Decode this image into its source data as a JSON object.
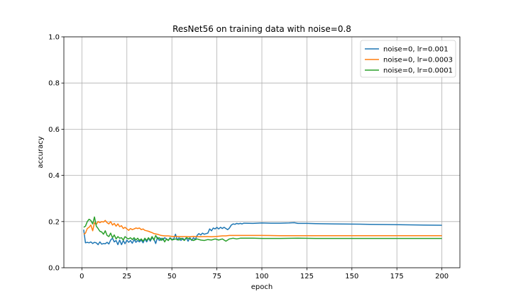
{
  "chart_data": {
    "type": "line",
    "title": "ResNet56 on training data with noise=0.8",
    "xlabel": "epoch",
    "ylabel": "accuracy",
    "xlim": [
      -10,
      210
    ],
    "ylim": [
      0.0,
      1.0
    ],
    "xticks": [
      0,
      25,
      50,
      75,
      100,
      125,
      150,
      175,
      200
    ],
    "yticks": [
      0.0,
      0.2,
      0.4,
      0.6,
      0.8,
      1.0
    ],
    "grid": true,
    "legend_position": "top-right",
    "series": [
      {
        "name": "noise=0, lr=0.001",
        "color": "#1f77b4",
        "points": [
          [
            1,
            0.165
          ],
          [
            2,
            0.108
          ],
          [
            3,
            0.11
          ],
          [
            4,
            0.108
          ],
          [
            5,
            0.112
          ],
          [
            6,
            0.105
          ],
          [
            7,
            0.11
          ],
          [
            8,
            0.108
          ],
          [
            9,
            0.1
          ],
          [
            10,
            0.112
          ],
          [
            11,
            0.102
          ],
          [
            12,
            0.105
          ],
          [
            13,
            0.104
          ],
          [
            14,
            0.11
          ],
          [
            15,
            0.103
          ],
          [
            16,
            0.12
          ],
          [
            17,
            0.128
          ],
          [
            18,
            0.112
          ],
          [
            19,
            0.118
          ],
          [
            20,
            0.1
          ],
          [
            21,
            0.12
          ],
          [
            22,
            0.1
          ],
          [
            23,
            0.118
          ],
          [
            24,
            0.104
          ],
          [
            25,
            0.12
          ],
          [
            26,
            0.11
          ],
          [
            27,
            0.118
          ],
          [
            28,
            0.106
          ],
          [
            29,
            0.122
          ],
          [
            30,
            0.11
          ],
          [
            31,
            0.118
          ],
          [
            32,
            0.112
          ],
          [
            33,
            0.12
          ],
          [
            34,
            0.108
          ],
          [
            35,
            0.125
          ],
          [
            36,
            0.112
          ],
          [
            37,
            0.128
          ],
          [
            38,
            0.115
          ],
          [
            39,
            0.13
          ],
          [
            40,
            0.125
          ],
          [
            41,
            0.105
          ],
          [
            42,
            0.132
          ],
          [
            43,
            0.118
          ],
          [
            44,
            0.128
          ],
          [
            45,
            0.12
          ],
          [
            46,
            0.13
          ],
          [
            47,
            0.125
          ],
          [
            48,
            0.118
          ],
          [
            49,
            0.13
          ],
          [
            50,
            0.122
          ],
          [
            51,
            0.125
          ],
          [
            52,
            0.145
          ],
          [
            53,
            0.12
          ],
          [
            54,
            0.13
          ],
          [
            55,
            0.118
          ],
          [
            56,
            0.128
          ],
          [
            57,
            0.12
          ],
          [
            58,
            0.13
          ],
          [
            59,
            0.115
          ],
          [
            60,
            0.13
          ],
          [
            61,
            0.118
          ],
          [
            62,
            0.13
          ],
          [
            63,
            0.122
          ],
          [
            64,
            0.14
          ],
          [
            65,
            0.148
          ],
          [
            66,
            0.142
          ],
          [
            67,
            0.15
          ],
          [
            68,
            0.145
          ],
          [
            69,
            0.148
          ],
          [
            70,
            0.15
          ],
          [
            71,
            0.168
          ],
          [
            72,
            0.16
          ],
          [
            73,
            0.172
          ],
          [
            74,
            0.168
          ],
          [
            75,
            0.175
          ],
          [
            76,
            0.168
          ],
          [
            77,
            0.175
          ],
          [
            78,
            0.17
          ],
          [
            79,
            0.175
          ],
          [
            80,
            0.17
          ],
          [
            81,
            0.165
          ],
          [
            82,
            0.172
          ],
          [
            83,
            0.185
          ],
          [
            84,
            0.19
          ],
          [
            85,
            0.188
          ],
          [
            86,
            0.192
          ],
          [
            87,
            0.19
          ],
          [
            88,
            0.192
          ],
          [
            89,
            0.19
          ],
          [
            90,
            0.193
          ],
          [
            95,
            0.192
          ],
          [
            100,
            0.194
          ],
          [
            105,
            0.193
          ],
          [
            110,
            0.193
          ],
          [
            115,
            0.194
          ],
          [
            118,
            0.195
          ],
          [
            120,
            0.192
          ],
          [
            125,
            0.192
          ],
          [
            130,
            0.191
          ],
          [
            140,
            0.19
          ],
          [
            150,
            0.189
          ],
          [
            160,
            0.188
          ],
          [
            170,
            0.187
          ],
          [
            180,
            0.186
          ],
          [
            190,
            0.185
          ],
          [
            200,
            0.184
          ]
        ]
      },
      {
        "name": "noise=0, lr=0.0003",
        "color": "#ff7f0e",
        "points": [
          [
            1,
            0.145
          ],
          [
            2,
            0.15
          ],
          [
            3,
            0.17
          ],
          [
            4,
            0.175
          ],
          [
            5,
            0.185
          ],
          [
            6,
            0.16
          ],
          [
            7,
            0.195
          ],
          [
            8,
            0.188
          ],
          [
            9,
            0.2
          ],
          [
            10,
            0.195
          ],
          [
            11,
            0.2
          ],
          [
            12,
            0.198
          ],
          [
            13,
            0.205
          ],
          [
            14,
            0.195
          ],
          [
            15,
            0.19
          ],
          [
            16,
            0.2
          ],
          [
            17,
            0.185
          ],
          [
            18,
            0.192
          ],
          [
            19,
            0.18
          ],
          [
            20,
            0.19
          ],
          [
            21,
            0.178
          ],
          [
            22,
            0.182
          ],
          [
            23,
            0.17
          ],
          [
            24,
            0.175
          ],
          [
            25,
            0.168
          ],
          [
            26,
            0.162
          ],
          [
            27,
            0.17
          ],
          [
            28,
            0.165
          ],
          [
            29,
            0.168
          ],
          [
            30,
            0.172
          ],
          [
            31,
            0.17
          ],
          [
            32,
            0.172
          ],
          [
            33,
            0.165
          ],
          [
            34,
            0.168
          ],
          [
            35,
            0.162
          ],
          [
            36,
            0.16
          ],
          [
            37,
            0.158
          ],
          [
            38,
            0.155
          ],
          [
            39,
            0.152
          ],
          [
            40,
            0.148
          ],
          [
            42,
            0.145
          ],
          [
            44,
            0.14
          ],
          [
            46,
            0.138
          ],
          [
            48,
            0.138
          ],
          [
            50,
            0.136
          ],
          [
            52,
            0.136
          ],
          [
            55,
            0.135
          ],
          [
            58,
            0.135
          ],
          [
            60,
            0.134
          ],
          [
            62,
            0.136
          ],
          [
            65,
            0.134
          ],
          [
            68,
            0.135
          ],
          [
            70,
            0.135
          ],
          [
            72,
            0.134
          ],
          [
            75,
            0.136
          ],
          [
            78,
            0.138
          ],
          [
            80,
            0.138
          ],
          [
            82,
            0.14
          ],
          [
            85,
            0.14
          ],
          [
            90,
            0.14
          ],
          [
            100,
            0.14
          ],
          [
            110,
            0.139
          ],
          [
            120,
            0.139
          ],
          [
            130,
            0.139
          ],
          [
            140,
            0.139
          ],
          [
            150,
            0.139
          ],
          [
            160,
            0.139
          ],
          [
            170,
            0.139
          ],
          [
            180,
            0.139
          ],
          [
            190,
            0.139
          ],
          [
            200,
            0.139
          ]
        ]
      },
      {
        "name": "noise=0, lr=0.0001",
        "color": "#2ca02c",
        "points": [
          [
            1,
            0.175
          ],
          [
            2,
            0.18
          ],
          [
            3,
            0.2
          ],
          [
            4,
            0.21
          ],
          [
            5,
            0.205
          ],
          [
            6,
            0.19
          ],
          [
            7,
            0.22
          ],
          [
            8,
            0.18
          ],
          [
            9,
            0.17
          ],
          [
            10,
            0.158
          ],
          [
            11,
            0.155
          ],
          [
            12,
            0.145
          ],
          [
            13,
            0.16
          ],
          [
            14,
            0.14
          ],
          [
            15,
            0.135
          ],
          [
            16,
            0.15
          ],
          [
            17,
            0.13
          ],
          [
            18,
            0.142
          ],
          [
            19,
            0.125
          ],
          [
            20,
            0.135
          ],
          [
            21,
            0.128
          ],
          [
            22,
            0.13
          ],
          [
            23,
            0.12
          ],
          [
            24,
            0.135
          ],
          [
            25,
            0.128
          ],
          [
            26,
            0.125
          ],
          [
            27,
            0.13
          ],
          [
            28,
            0.122
          ],
          [
            29,
            0.13
          ],
          [
            30,
            0.12
          ],
          [
            31,
            0.128
          ],
          [
            32,
            0.118
          ],
          [
            33,
            0.125
          ],
          [
            34,
            0.115
          ],
          [
            35,
            0.128
          ],
          [
            36,
            0.118
          ],
          [
            37,
            0.13
          ],
          [
            38,
            0.12
          ],
          [
            39,
            0.135
          ],
          [
            40,
            0.12
          ],
          [
            41,
            0.14
          ],
          [
            42,
            0.125
          ],
          [
            43,
            0.13
          ],
          [
            44,
            0.118
          ],
          [
            45,
            0.128
          ],
          [
            46,
            0.112
          ],
          [
            47,
            0.125
          ],
          [
            48,
            0.118
          ],
          [
            49,
            0.128
          ],
          [
            50,
            0.12
          ],
          [
            52,
            0.125
          ],
          [
            54,
            0.12
          ],
          [
            55,
            0.128
          ],
          [
            57,
            0.118
          ],
          [
            58,
            0.13
          ],
          [
            60,
            0.125
          ],
          [
            62,
            0.118
          ],
          [
            64,
            0.125
          ],
          [
            66,
            0.12
          ],
          [
            68,
            0.118
          ],
          [
            70,
            0.122
          ],
          [
            72,
            0.12
          ],
          [
            74,
            0.125
          ],
          [
            76,
            0.12
          ],
          [
            78,
            0.125
          ],
          [
            80,
            0.115
          ],
          [
            82,
            0.125
          ],
          [
            84,
            0.128
          ],
          [
            86,
            0.125
          ],
          [
            88,
            0.128
          ],
          [
            90,
            0.128
          ],
          [
            95,
            0.128
          ],
          [
            100,
            0.127
          ],
          [
            110,
            0.127
          ],
          [
            120,
            0.128
          ],
          [
            130,
            0.127
          ],
          [
            140,
            0.127
          ],
          [
            150,
            0.127
          ],
          [
            160,
            0.127
          ],
          [
            170,
            0.127
          ],
          [
            180,
            0.127
          ],
          [
            190,
            0.127
          ],
          [
            200,
            0.127
          ]
        ]
      }
    ]
  }
}
